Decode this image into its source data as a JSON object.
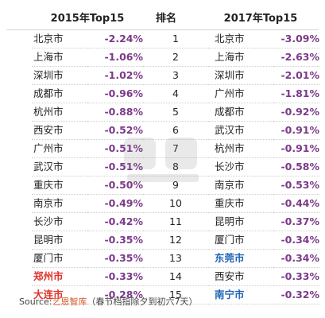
{
  "headers": {
    "left": "2015年Top15",
    "middle": "排名",
    "right": "2017年Top15"
  },
  "rows": [
    {
      "city2015": "北京市",
      "val2015": "-2.24%",
      "rank": "1",
      "city2017": "北京市",
      "val2017": "-3.09%"
    },
    {
      "city2015": "上海市",
      "val2015": "-1.06%",
      "rank": "2",
      "city2017": "上海市",
      "val2017": "-2.63%"
    },
    {
      "city2015": "深圳市",
      "val2015": "-1.02%",
      "rank": "3",
      "city2017": "深圳市",
      "val2017": "-2.01%"
    },
    {
      "city2015": "成都市",
      "val2015": "-0.96%",
      "rank": "4",
      "city2017": "广州市",
      "val2017": "-1.81%"
    },
    {
      "city2015": "杭州市",
      "val2015": "-0.88%",
      "rank": "5",
      "city2017": "成都市",
      "val2017": "-0.92%"
    },
    {
      "city2015": "西安市",
      "val2015": "-0.52%",
      "rank": "6",
      "city2017": "武汉市",
      "val2017": "-0.91%"
    },
    {
      "city2015": "广州市",
      "val2015": "-0.51%",
      "rank": "7",
      "city2017": "杭州市",
      "val2017": "-0.91%"
    },
    {
      "city2015": "武汉市",
      "val2015": "-0.51%",
      "rank": "8",
      "city2017": "长沙市",
      "val2017": "-0.58%"
    },
    {
      "city2015": "重庆市",
      "val2015": "-0.50%",
      "rank": "9",
      "city2017": "南京市",
      "val2017": "-0.53%"
    },
    {
      "city2015": "南京市",
      "val2015": "-0.49%",
      "rank": "10",
      "city2017": "重庆市",
      "val2017": "-0.44%"
    },
    {
      "city2015": "长沙市",
      "val2015": "-0.42%",
      "rank": "11",
      "city2017": "昆明市",
      "val2017": "-0.37%"
    },
    {
      "city2015": "昆明市",
      "val2015": "-0.35%",
      "rank": "12",
      "city2017": "厦门市",
      "val2017": "-0.34%"
    },
    {
      "city2015": "厦门市",
      "val2015": "-0.35%",
      "rank": "13",
      "city2017": "东莞市",
      "val2017": "-0.34%"
    },
    {
      "city2015": "郑州市",
      "val2015": "-0.33%",
      "rank": "14",
      "city2017": "西安市",
      "val2017": "-0.33%"
    },
    {
      "city2015": "大连市",
      "val2015": "-0.28%",
      "rank": "15",
      "city2017": "南宁市",
      "val2017": "-0.32%"
    }
  ],
  "highlights": {
    "red_2015_rows": [
      13,
      14
    ],
    "blue_2017_rows": [
      12,
      14
    ]
  },
  "colors": {
    "value": "#7b3a8a",
    "red": "#e0312b",
    "blue": "#1f63b5",
    "source_brand": "#d4572a"
  },
  "source": {
    "prefix": "Source:",
    "brand": "艺恩智库",
    "note": "（春节档指除夕到初六7天）"
  },
  "watermark": {
    "icon": "eguo-logo-watermark"
  }
}
